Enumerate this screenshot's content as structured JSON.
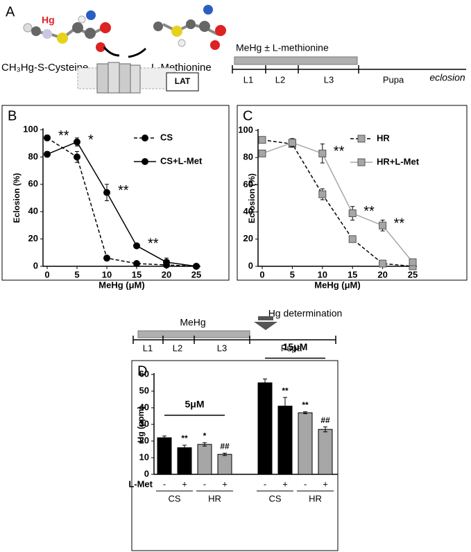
{
  "panel_a": {
    "label": "A",
    "hg": "Hg",
    "cysteine": "CH₃Hg-S-Cysteine",
    "methionine": "L-Methionine",
    "transporter": "LAT",
    "treatment": "MeHg  ± L-methionine",
    "stages": [
      "L1",
      "L2",
      "L3",
      "Pupa"
    ],
    "end": "eclosion"
  },
  "timeline_d": {
    "treatment": "MeHg",
    "measurement": "Hg determination",
    "stages": [
      "L1",
      "L2",
      "L3",
      "Pupa"
    ]
  },
  "chart_data": [
    {
      "type": "line",
      "panel": "B",
      "x": [
        0,
        5,
        10,
        15,
        20,
        25
      ],
      "xlim": [
        0,
        25
      ],
      "xticks": [
        0,
        5,
        10,
        15,
        20,
        25
      ],
      "ylim": [
        0,
        100
      ],
      "yticks": [
        0,
        20,
        40,
        60,
        80,
        100
      ],
      "xlabel": "MeHg (μM)",
      "ylabel": "Eclosion  (%)",
      "legend": "upper right",
      "series": [
        {
          "name": "CS",
          "color": "#000000",
          "line_color": "#000000",
          "marker": "circle",
          "dashed": true,
          "values": [
            94,
            80,
            6,
            2,
            1,
            0
          ],
          "errors": [
            2,
            4,
            1,
            1,
            1,
            0
          ]
        },
        {
          "name": "CS+L-Met",
          "color": "#000000",
          "line_color": "#000000",
          "marker": "circle",
          "dashed": false,
          "values": [
            82,
            91,
            54,
            15,
            3,
            0
          ],
          "errors": [
            2,
            3,
            6,
            1,
            3,
            1
          ]
        }
      ],
      "significance": [
        "**",
        "*",
        "**",
        "**",
        null,
        null
      ]
    },
    {
      "type": "line",
      "panel": "C",
      "x": [
        0,
        5,
        10,
        15,
        20,
        25
      ],
      "xlim": [
        0,
        25
      ],
      "xticks": [
        0,
        5,
        10,
        15,
        20,
        25
      ],
      "ylim": [
        0,
        100
      ],
      "yticks": [
        0,
        20,
        40,
        60,
        80,
        100
      ],
      "xlabel": "MeHg (μM)",
      "ylabel": "Eclosion  (%)",
      "legend": "upper right",
      "series": [
        {
          "name": "HR",
          "color": "#a6a6a6",
          "line_color": "#000000",
          "marker": "square",
          "dashed": true,
          "values": [
            93,
            90,
            53,
            20,
            2,
            0
          ],
          "errors": [
            2,
            2,
            4,
            1,
            1,
            0
          ]
        },
        {
          "name": "HR+L-Met",
          "color": "#a6a6a6",
          "line_color": "#a6a6a6",
          "marker": "square",
          "dashed": false,
          "values": [
            83,
            91,
            83,
            39,
            30,
            3
          ],
          "errors": [
            2,
            3,
            7,
            5,
            4,
            1
          ]
        }
      ],
      "significance": [
        null,
        null,
        "**",
        "**",
        "**",
        null
      ]
    },
    {
      "type": "bar",
      "panel": "D",
      "ylabel": "Hg (ppm)",
      "ylim": [
        0,
        60
      ],
      "yticks": [
        0,
        10,
        20,
        30,
        40,
        50,
        60
      ],
      "row_label": "L-Met",
      "categories": [
        "-",
        "+",
        "-",
        "+",
        "-",
        "+",
        "-",
        "+"
      ],
      "values": [
        22,
        16,
        18,
        12,
        55,
        41,
        37,
        27
      ],
      "errors": [
        1,
        1.5,
        1,
        0.7,
        2.3,
        5.2,
        0.6,
        1.5
      ],
      "colors": [
        "#000000",
        "#000000",
        "#a6a6a6",
        "#a6a6a6",
        "#000000",
        "#000000",
        "#a6a6a6",
        "#a6a6a6"
      ],
      "significance": [
        null,
        "**",
        "*",
        "##",
        null,
        "**",
        "**",
        "##"
      ],
      "strains": [
        "CS",
        "HR",
        "CS",
        "HR"
      ],
      "doses": [
        "5μM",
        "15μM"
      ]
    }
  ]
}
